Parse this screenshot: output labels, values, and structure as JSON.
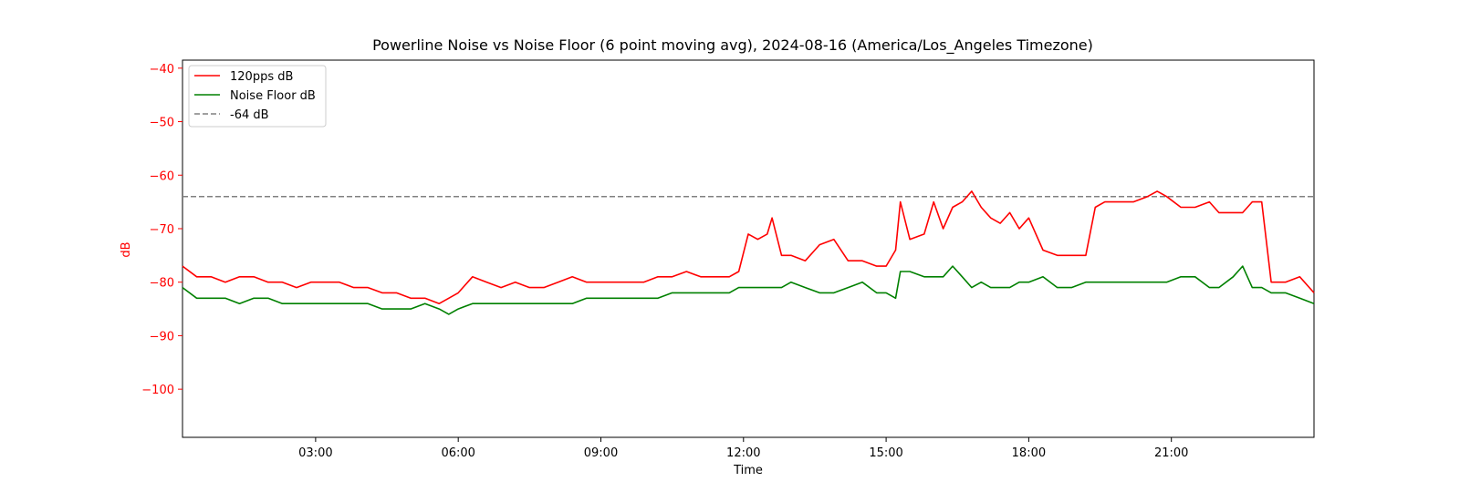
{
  "chart_data": {
    "type": "line",
    "title": "Powerline Noise vs Noise Floor (6 point moving avg), 2024-08-16 (America/Los_Angeles Timezone)",
    "xlabel": "Time",
    "ylabel": "dB",
    "x_unit": "hours since 00:00 on 2024-08-16",
    "xlim": [
      0.2,
      24.0
    ],
    "ylim": [
      -109,
      -38.5
    ],
    "x_ticks": [
      3,
      6,
      9,
      12,
      15,
      18,
      21
    ],
    "x_tick_labels": [
      "03:00",
      "06:00",
      "09:00",
      "12:00",
      "15:00",
      "18:00",
      "21:00"
    ],
    "y_ticks": [
      -40,
      -50,
      -60,
      -70,
      -80,
      -90,
      -100
    ],
    "y_tick_labels": [
      "−40",
      "−50",
      "−60",
      "−70",
      "−80",
      "−90",
      "−100"
    ],
    "y_axis_color": "#ff0000",
    "grid": false,
    "legend_position": "top-left",
    "reference_lines": [
      {
        "name": "-64 dB",
        "y": -64,
        "color": "#808080",
        "dashed": true
      }
    ],
    "series": [
      {
        "name": "120pps dB",
        "color": "#ff0000",
        "x": [
          0.2,
          0.5,
          0.8,
          1.1,
          1.4,
          1.7,
          2.0,
          2.3,
          2.6,
          2.9,
          3.2,
          3.5,
          3.8,
          4.1,
          4.4,
          4.7,
          5.0,
          5.3,
          5.6,
          5.8,
          6.0,
          6.3,
          6.6,
          6.9,
          7.2,
          7.5,
          7.8,
          8.1,
          8.4,
          8.7,
          9.0,
          9.3,
          9.6,
          9.9,
          10.2,
          10.5,
          10.8,
          11.1,
          11.4,
          11.7,
          11.9,
          12.1,
          12.3,
          12.5,
          12.6,
          12.8,
          13.0,
          13.3,
          13.6,
          13.9,
          14.2,
          14.5,
          14.8,
          15.0,
          15.2,
          15.3,
          15.5,
          15.8,
          16.0,
          16.2,
          16.4,
          16.6,
          16.8,
          17.0,
          17.2,
          17.4,
          17.6,
          17.8,
          18.0,
          18.3,
          18.6,
          18.9,
          19.2,
          19.4,
          19.6,
          19.9,
          20.2,
          20.5,
          20.7,
          20.9,
          21.2,
          21.5,
          21.8,
          22.0,
          22.3,
          22.5,
          22.7,
          22.9,
          23.1,
          23.4,
          23.7,
          24.0
        ],
        "values": [
          -77,
          -79,
          -79,
          -80,
          -79,
          -79,
          -80,
          -80,
          -81,
          -80,
          -80,
          -80,
          -81,
          -81,
          -82,
          -82,
          -83,
          -83,
          -84,
          -83,
          -82,
          -79,
          -80,
          -81,
          -80,
          -81,
          -81,
          -80,
          -79,
          -80,
          -80,
          -80,
          -80,
          -80,
          -79,
          -79,
          -78,
          -79,
          -79,
          -79,
          -78,
          -71,
          -72,
          -71,
          -68,
          -75,
          -75,
          -76,
          -73,
          -72,
          -76,
          -76,
          -77,
          -77,
          -74,
          -65,
          -72,
          -71,
          -65,
          -70,
          -66,
          -65,
          -63,
          -66,
          -68,
          -69,
          -67,
          -70,
          -68,
          -74,
          -75,
          -75,
          -75,
          -66,
          -65,
          -65,
          -65,
          -64,
          -63,
          -64,
          -66,
          -66,
          -65,
          -67,
          -67,
          -67,
          -65,
          -65,
          -80,
          -80,
          -79,
          -82
        ]
      },
      {
        "name": "Noise Floor dB",
        "color": "#008000",
        "x": [
          0.2,
          0.5,
          0.8,
          1.1,
          1.4,
          1.7,
          2.0,
          2.3,
          2.6,
          2.9,
          3.2,
          3.5,
          3.8,
          4.1,
          4.4,
          4.7,
          5.0,
          5.3,
          5.6,
          5.8,
          6.0,
          6.3,
          6.6,
          6.9,
          7.2,
          7.5,
          7.8,
          8.1,
          8.4,
          8.7,
          9.0,
          9.3,
          9.6,
          9.9,
          10.2,
          10.5,
          10.8,
          11.1,
          11.4,
          11.7,
          11.9,
          12.1,
          12.3,
          12.5,
          12.6,
          12.8,
          13.0,
          13.3,
          13.6,
          13.9,
          14.2,
          14.5,
          14.8,
          15.0,
          15.2,
          15.3,
          15.5,
          15.8,
          16.0,
          16.2,
          16.4,
          16.6,
          16.8,
          17.0,
          17.2,
          17.4,
          17.6,
          17.8,
          18.0,
          18.3,
          18.6,
          18.9,
          19.2,
          19.4,
          19.6,
          19.9,
          20.2,
          20.5,
          20.7,
          20.9,
          21.2,
          21.5,
          21.8,
          22.0,
          22.3,
          22.5,
          22.7,
          22.9,
          23.1,
          23.4,
          23.7,
          24.0
        ],
        "values": [
          -81,
          -83,
          -83,
          -83,
          -84,
          -83,
          -83,
          -84,
          -84,
          -84,
          -84,
          -84,
          -84,
          -84,
          -85,
          -85,
          -85,
          -84,
          -85,
          -86,
          -85,
          -84,
          -84,
          -84,
          -84,
          -84,
          -84,
          -84,
          -84,
          -83,
          -83,
          -83,
          -83,
          -83,
          -83,
          -82,
          -82,
          -82,
          -82,
          -82,
          -81,
          -81,
          -81,
          -81,
          -81,
          -81,
          -80,
          -81,
          -82,
          -82,
          -81,
          -80,
          -82,
          -82,
          -83,
          -78,
          -78,
          -79,
          -79,
          -79,
          -77,
          -79,
          -81,
          -80,
          -81,
          -81,
          -81,
          -80,
          -80,
          -79,
          -81,
          -81,
          -80,
          -80,
          -80,
          -80,
          -80,
          -80,
          -80,
          -80,
          -79,
          -79,
          -81,
          -81,
          -79,
          -77,
          -81,
          -81,
          -82,
          -82,
          -83,
          -84
        ]
      }
    ]
  }
}
